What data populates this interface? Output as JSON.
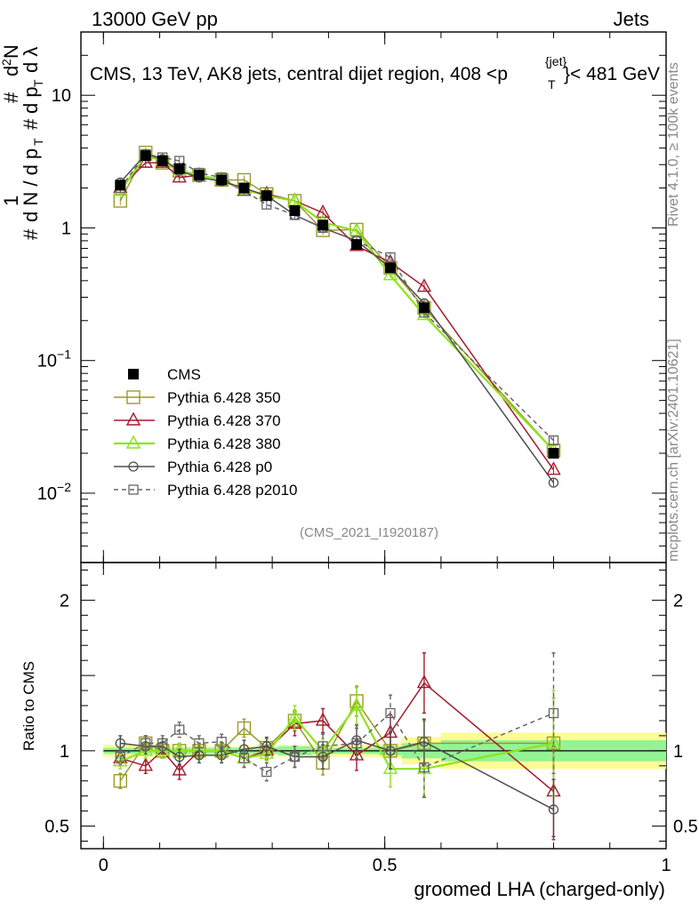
{
  "header": {
    "energy_label": "13000 GeV pp",
    "category_label": "Jets"
  },
  "side": {
    "rivet_label": "Rivet 4.1.0, ≥ 100k events",
    "ref_label": "mcplots.cern.ch [arXiv:2401.10621]"
  },
  "colors": {
    "cms": "#000000",
    "p350": "#9a9a2c",
    "p370": "#a51a2e",
    "p380": "#8fe21c",
    "p0": "#4d4d4d",
    "p2010": "#666666",
    "band_inner": "#94f394",
    "band_outer": "#fcfc94"
  },
  "chart_data": {
    "type": "line",
    "title": "CMS, 13 TeV, AK8 jets, central dijet region, 408 <p",
    "title_sup": "{jet}",
    "title_sub": "T",
    "title_end": "}< 481 GeV",
    "watermark": "(CMS_2021_I1920187)",
    "xlabel": "groomed LHA (charged-only)",
    "ylabel_main": "1/N dN/dp_T d²N/(dp_T dλ)",
    "ylabel_ratio": "Ratio to CMS",
    "xlim": [
      -0.04,
      1.0
    ],
    "ylim_main": [
      0.003,
      30
    ],
    "ylim_ratio": [
      0.35,
      2.25
    ],
    "x_ticks": [
      "0",
      "0.5",
      "1"
    ],
    "x_tick_values": [
      0,
      0.5,
      1
    ],
    "y_ticks_main": [
      {
        "value": 0.01,
        "base": "10",
        "exp": "−2"
      },
      {
        "value": 0.1,
        "base": "10",
        "exp": "−1"
      },
      {
        "value": 1,
        "base": "1",
        "exp": ""
      },
      {
        "value": 10,
        "base": "10",
        "exp": ""
      }
    ],
    "y_ticks_ratio": [
      "0.5",
      "1",
      "2"
    ],
    "y_tick_ratio_values": [
      0.5,
      1,
      2
    ],
    "x": [
      0.03,
      0.075,
      0.105,
      0.135,
      0.17,
      0.21,
      0.25,
      0.29,
      0.34,
      0.39,
      0.45,
      0.51,
      0.57,
      0.8
    ],
    "bin_edges": [
      0.0,
      0.06,
      0.09,
      0.12,
      0.15,
      0.19,
      0.23,
      0.27,
      0.31,
      0.37,
      0.41,
      0.49,
      0.53,
      0.6,
      1.0
    ],
    "cms_err_inner": [
      0.02,
      0.02,
      0.02,
      0.02,
      0.02,
      0.02,
      0.02,
      0.02,
      0.03,
      0.02,
      0.02,
      0.03,
      0.05,
      0.07
    ],
    "cms_err_outer": [
      0.04,
      0.04,
      0.04,
      0.03,
      0.03,
      0.03,
      0.03,
      0.03,
      0.04,
      0.04,
      0.04,
      0.05,
      0.09,
      0.12
    ],
    "series": [
      {
        "key": "cms",
        "name": "CMS",
        "values": [
          2.1,
          3.5,
          3.2,
          2.8,
          2.5,
          2.3,
          2.0,
          1.75,
          1.35,
          1.05,
          0.75,
          0.5,
          0.25,
          0.02
        ]
      },
      {
        "key": "p350",
        "name": "Pythia 6.428 350",
        "values": [
          1.6,
          3.7,
          3.1,
          2.7,
          2.5,
          2.3,
          2.3,
          1.8,
          1.6,
          0.96,
          0.97,
          0.5,
          0.25,
          0.021
        ],
        "ratio": [
          0.8,
          1.05,
          1.0,
          1.0,
          1.0,
          1.0,
          1.15,
          1.02,
          1.2,
          0.92,
          1.33,
          1.0,
          1.05,
          1.05
        ],
        "ratio_err": [
          0.05,
          0.05,
          0.05,
          0.05,
          0.05,
          0.05,
          0.06,
          0.06,
          0.07,
          0.08,
          0.1,
          0.12,
          0.15,
          0.3
        ],
        "marker": "square",
        "dashed": false
      },
      {
        "key": "p370",
        "name": "Pythia 6.428 370",
        "values": [
          2.0,
          3.1,
          3.1,
          2.4,
          2.5,
          2.3,
          1.9,
          1.8,
          1.6,
          1.3,
          0.73,
          0.55,
          0.36,
          0.015
        ],
        "ratio": [
          0.95,
          0.9,
          1.0,
          0.87,
          1.0,
          1.0,
          0.95,
          1.0,
          1.18,
          1.2,
          0.97,
          1.12,
          1.45,
          0.73
        ],
        "ratio_err": [
          0.05,
          0.05,
          0.05,
          0.06,
          0.05,
          0.05,
          0.06,
          0.06,
          0.08,
          0.08,
          0.1,
          0.12,
          0.2,
          0.3
        ],
        "marker": "triangle",
        "dashed": false
      },
      {
        "key": "p380",
        "name": "Pythia 6.428 380",
        "values": [
          1.9,
          3.5,
          3.2,
          2.7,
          2.5,
          2.3,
          1.95,
          1.75,
          1.6,
          1.1,
          0.95,
          0.44,
          0.22,
          0.021
        ],
        "ratio": [
          0.93,
          1.0,
          1.0,
          1.0,
          1.0,
          1.0,
          0.95,
          0.98,
          1.22,
          1.0,
          1.3,
          0.88,
          0.88,
          1.05
        ],
        "ratio_err": [
          0.05,
          0.05,
          0.05,
          0.05,
          0.05,
          0.05,
          0.06,
          0.06,
          0.08,
          0.08,
          0.12,
          0.12,
          0.18,
          0.35
        ],
        "marker": "triangle",
        "dashed": false
      },
      {
        "key": "p0",
        "name": "Pythia 6.428 p0",
        "values": [
          2.2,
          3.6,
          3.3,
          2.7,
          2.4,
          2.25,
          2.0,
          1.75,
          1.25,
          1.0,
          0.8,
          0.5,
          0.27,
          0.012
        ],
        "ratio": [
          1.05,
          1.03,
          1.03,
          0.96,
          0.97,
          0.97,
          1.01,
          1.03,
          0.96,
          0.96,
          1.07,
          1.0,
          1.06,
          0.61
        ],
        "ratio_err": [
          0.05,
          0.05,
          0.05,
          0.05,
          0.05,
          0.05,
          0.06,
          0.06,
          0.07,
          0.08,
          0.1,
          0.12,
          0.15,
          0.2
        ],
        "marker": "circle",
        "dashed": false
      },
      {
        "key": "p2010",
        "name": "Pythia 6.428 p2010",
        "values": [
          2.0,
          3.6,
          3.4,
          3.2,
          2.6,
          2.4,
          1.9,
          1.5,
          1.25,
          1.0,
          0.8,
          0.6,
          0.23,
          0.025
        ],
        "ratio": [
          0.96,
          1.05,
          1.05,
          1.14,
          1.05,
          1.06,
          0.95,
          0.86,
          0.96,
          1.03,
          1.05,
          1.25,
          0.89,
          1.25
        ],
        "ratio_err": [
          0.05,
          0.05,
          0.05,
          0.05,
          0.05,
          0.05,
          0.06,
          0.06,
          0.07,
          0.08,
          0.1,
          0.12,
          0.2,
          0.4
        ],
        "marker": "open-square",
        "dashed": true
      }
    ]
  }
}
